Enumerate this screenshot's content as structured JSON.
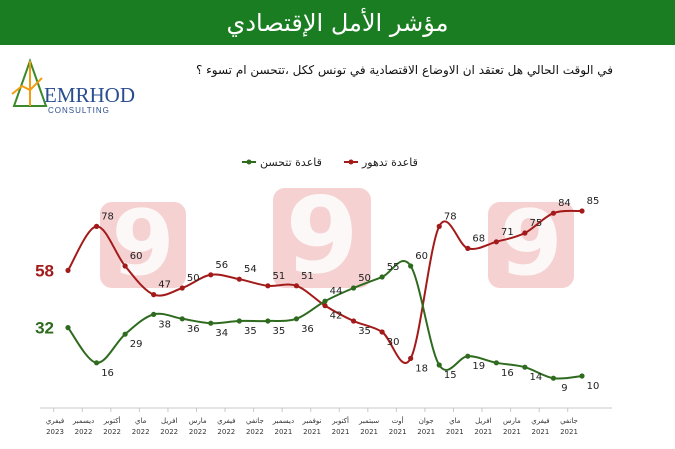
{
  "title": "مؤشر الأمل الإقتصادي",
  "question": "في الوقت الحالي هل تعتقد ان الاوضاع الاقتصادية في تونس ككل ،تتحسن ام تسوء ؟",
  "logo": {
    "name": "EMRHOD",
    "sub": "CONSULTING"
  },
  "colors": {
    "header": "#1b7d22",
    "improve": "#2e6b1e",
    "worsen": "#a31a1a"
  },
  "chart_data": {
    "type": "line",
    "categories": [
      [
        "فيفري",
        "2023"
      ],
      [
        "ديسمبر",
        "2022"
      ],
      [
        "أكتوبر",
        "2022"
      ],
      [
        "ماي",
        "2022"
      ],
      [
        "افريل",
        "2022"
      ],
      [
        "مارس",
        "2022"
      ],
      [
        "فيفري",
        "2022"
      ],
      [
        "جانفي",
        "2022"
      ],
      [
        "ديسمبر",
        "2021"
      ],
      [
        "نوفمبر",
        "2021"
      ],
      [
        "أكتوبر",
        "2021"
      ],
      [
        "سبتمبر",
        "2021"
      ],
      [
        "أوت",
        "2021"
      ],
      [
        "جوان",
        "2021"
      ],
      [
        "ماي",
        "2021"
      ],
      [
        "افريل",
        "2021"
      ],
      [
        "مارس",
        "2021"
      ],
      [
        "فيفري",
        "2021"
      ],
      [
        "جانفي",
        "2021"
      ]
    ],
    "series": [
      {
        "name": "قاعدة تدهور",
        "values": [
          58,
          78,
          60,
          47,
          50,
          56,
          54,
          51,
          51,
          42,
          35,
          30,
          18,
          78,
          68,
          71,
          75,
          84,
          85
        ],
        "labels": [
          "58",
          "78",
          "60",
          "47",
          "50",
          "56",
          "54",
          "51",
          "51",
          "42",
          "35",
          "30",
          "18",
          "78",
          "68",
          "71",
          "75",
          "84",
          "85"
        ]
      },
      {
        "name": "قاعدة تتحسن",
        "values": [
          32,
          16,
          29,
          38,
          36,
          34,
          35,
          35,
          36,
          44,
          50,
          55,
          60,
          15,
          19,
          16,
          14,
          9,
          10
        ],
        "labels": [
          "32",
          "16",
          "29",
          "38",
          "36",
          "34",
          "35",
          "35",
          "36",
          "44",
          "50",
          "55",
          "60",
          "15",
          "19",
          "16",
          "14",
          "9",
          "10"
        ]
      }
    ],
    "watermark": [
      "9",
      "9",
      "9"
    ]
  }
}
